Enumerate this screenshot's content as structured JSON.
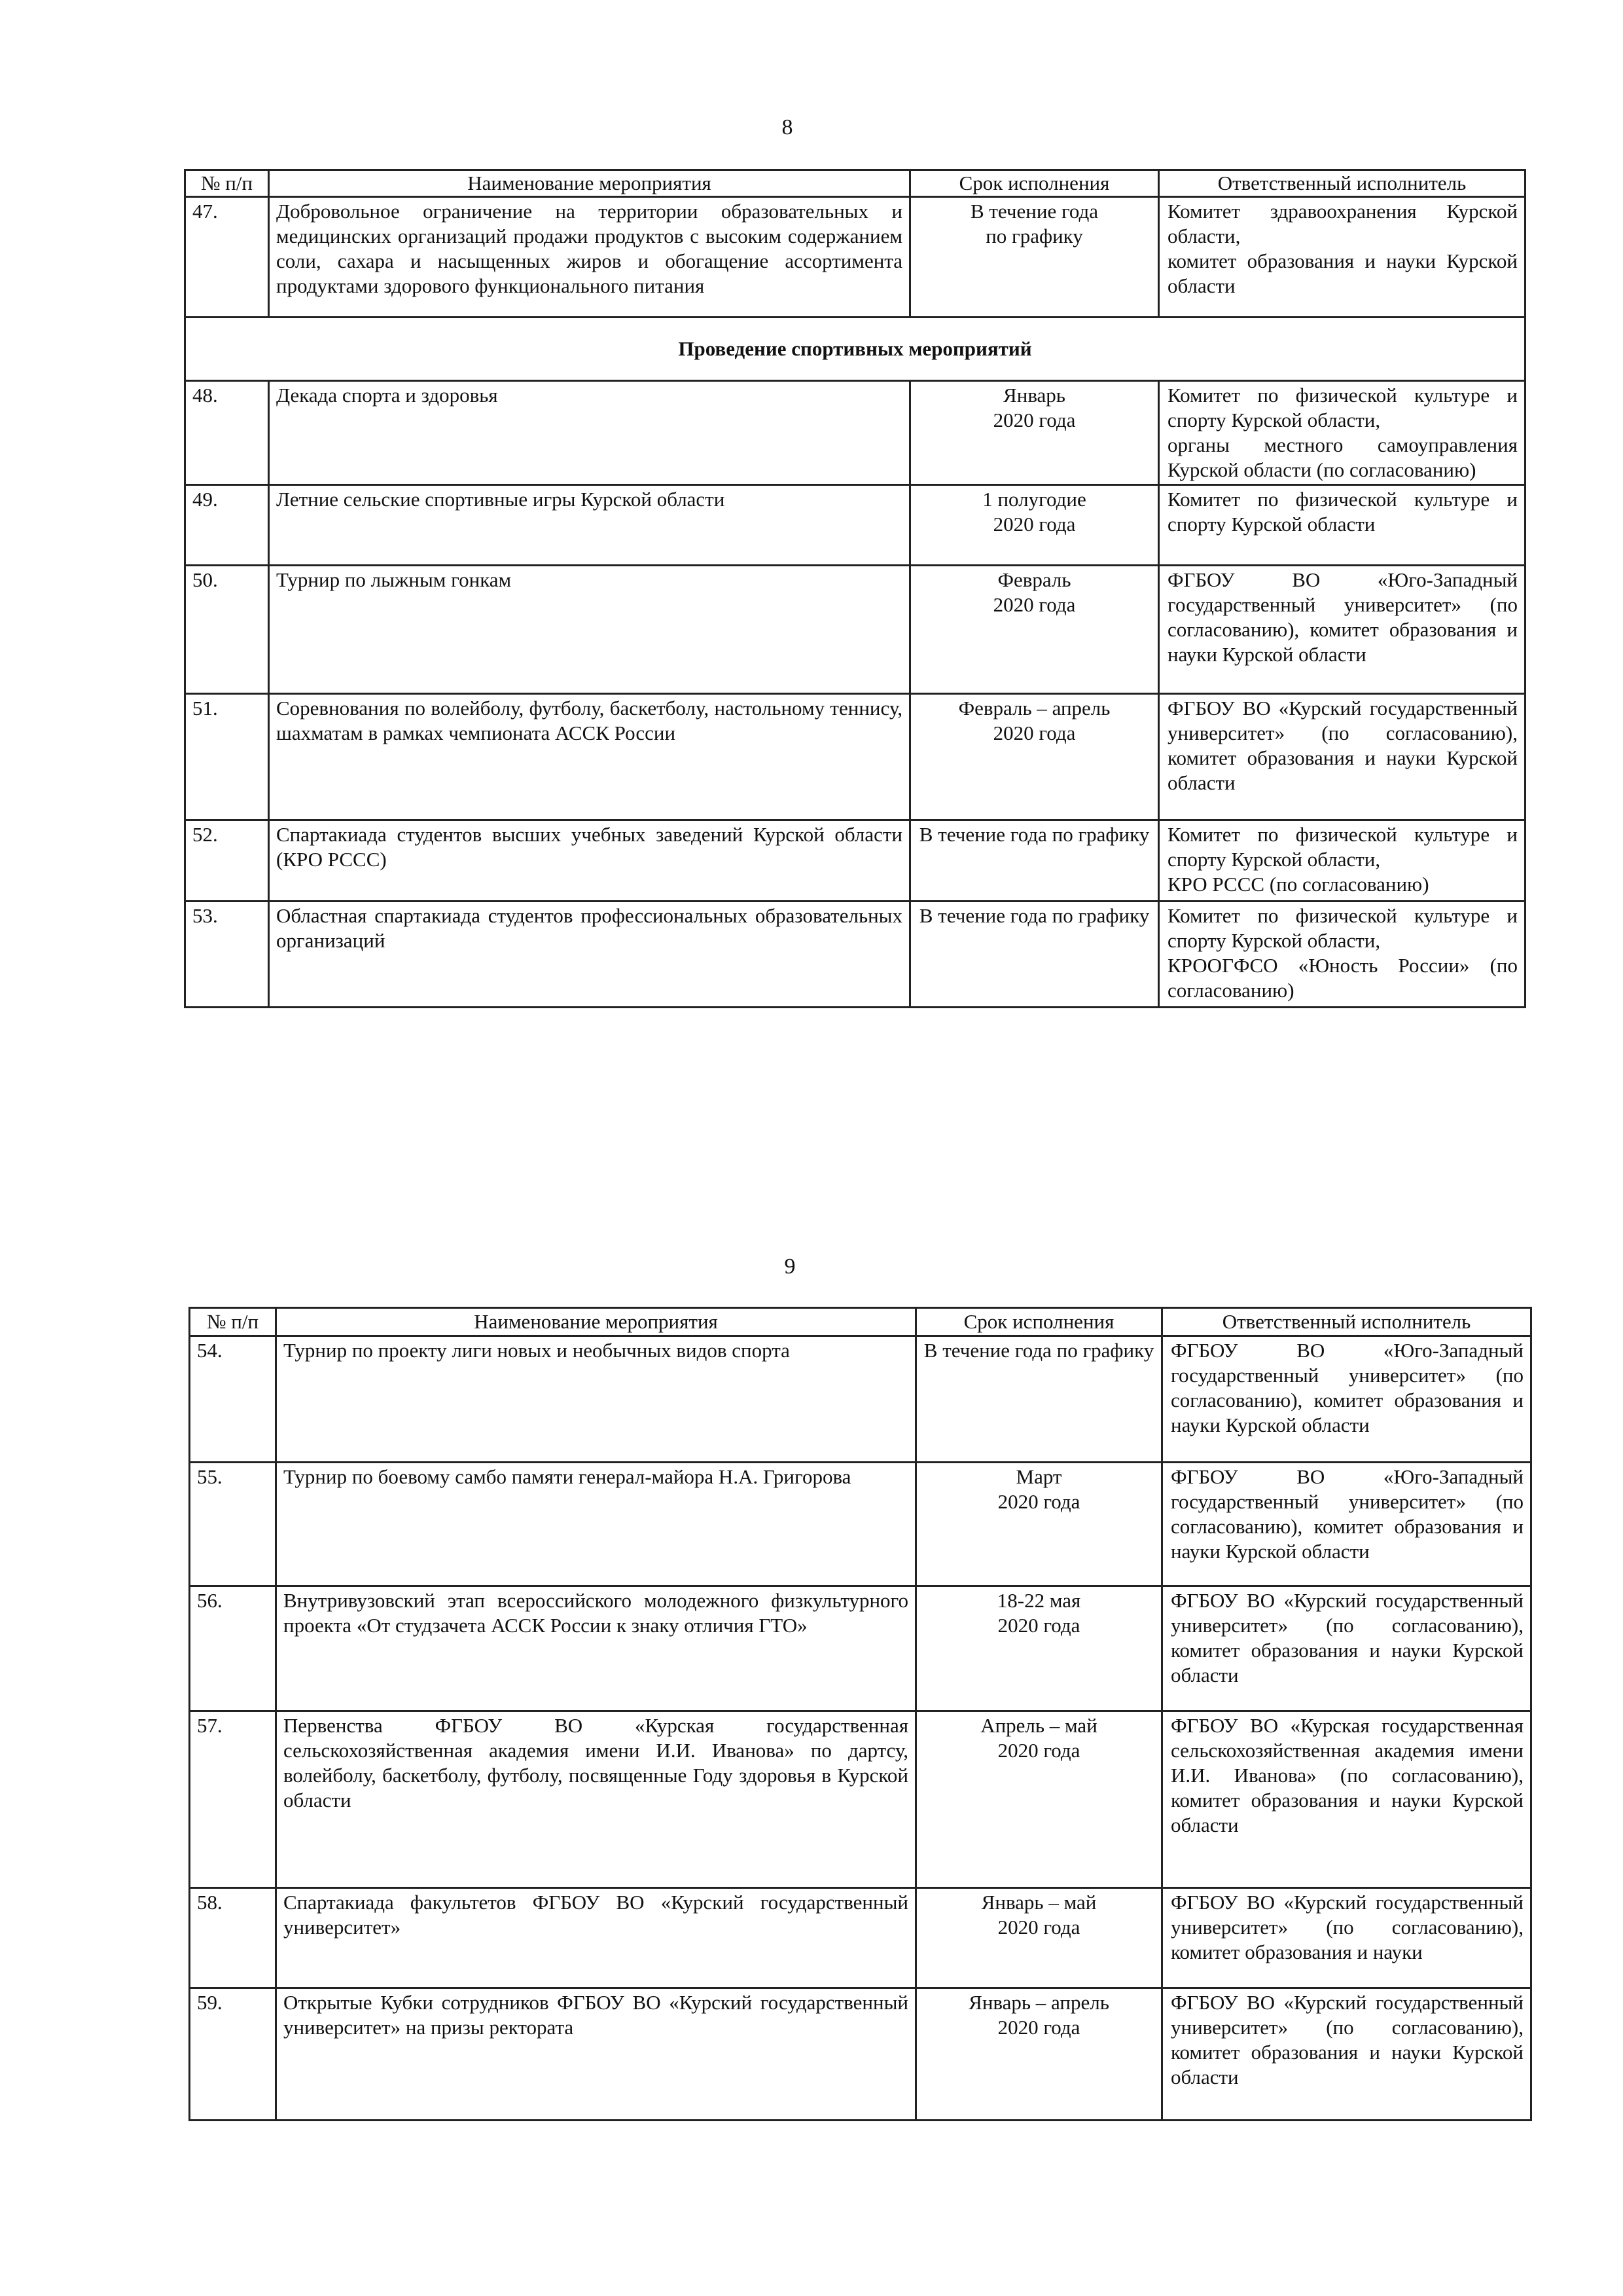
{
  "pages": [
    {
      "page_number": "8",
      "headers": [
        "№ п/п",
        "Наименование мероприятия",
        "Срок исполнения",
        "Ответственный исполнитель"
      ],
      "rows": [
        {
          "num": "47.",
          "name": "Добровольное ограничение на территории образовательных и медицинских организаций продажи продуктов с высоким содержанием соли, сахара и насыщенных жиров и обогащение ассортимента продуктами здорового функционального питания",
          "date": "В течение года\nпо графику",
          "resp": "Комитет здравоохранения Курской области,\nкомитет образования и науки Курской области"
        },
        {
          "section": "Проведение спортивных мероприятий"
        },
        {
          "num": "48.",
          "name": "Декада спорта и здоровья",
          "date": "Январь\n2020 года",
          "resp": "Комитет по физической культуре и спорту Курской области,\nорганы местного самоуправления Курской области (по согласованию)"
        },
        {
          "num": "49.",
          "name": "Летние сельские спортивные игры Курской области",
          "date": "1 полугодие\n2020 года",
          "resp": "Комитет по физической культуре и спорту Курской области"
        },
        {
          "num": "50.",
          "name": "Турнир по лыжным гонкам",
          "date": "Февраль\n2020 года",
          "resp": "ФГБОУ ВО «Юго-Западный государственный университет» (по согласованию), комитет образования и науки Курской области"
        },
        {
          "num": "51.",
          "name": "Соревнования по волейболу, футболу, баскетболу, настольному теннису, шахматам в рамках чемпионата АССК России",
          "date": "Февраль – апрель\n2020 года",
          "resp": "ФГБОУ ВО «Курский государственный университет» (по согласованию), комитет образования и науки Курской области"
        },
        {
          "num": "52.",
          "name": "Спартакиада студентов высших учебных заведений Курской области (КРО РССС)",
          "date": "В течение года по графику",
          "resp": "Комитет по физической культуре и спорту Курской области,\nКРО РССС (по согласованию)"
        },
        {
          "num": "53.",
          "name": "Областная спартакиада студентов профессиональных образовательных организаций",
          "date": "В течение года по графику",
          "resp": "Комитет по физической культуре и спорту Курской области,\nКРООГФСО «Юность России» (по согласованию)"
        }
      ]
    },
    {
      "page_number": "9",
      "headers": [
        "№ п/п",
        "Наименование мероприятия",
        "Срок исполнения",
        "Ответственный исполнитель"
      ],
      "rows": [
        {
          "num": "54.",
          "name": "Турнир по проекту лиги новых и необычных видов спорта",
          "date": "В течение года по графику",
          "resp": "ФГБОУ ВО «Юго-Западный государственный университет» (по согласованию), комитет образования и науки Курской области"
        },
        {
          "num": "55.",
          "name": "Турнир по боевому самбо памяти генерал-майора Н.А. Григорова",
          "date": "Март\n2020 года",
          "resp": "ФГБОУ ВО «Юго-Западный государственный университет» (по согласованию), комитет образования и науки Курской области"
        },
        {
          "num": "56.",
          "name": "Внутривузовский этап всероссийского молодежного физкультурного проекта «От студзачета АССК России к знаку отличия ГТО»",
          "date": "18-22 мая\n2020 года",
          "resp": "ФГБОУ ВО «Курский государственный университет» (по согласованию), комитет образования и науки Курской области"
        },
        {
          "num": "57.",
          "name": "Первенства ФГБОУ ВО «Курская государственная сельскохозяйственная академия имени И.И. Иванова» по дартсу, волейболу, баскетболу, футболу, посвященные Году здоровья в Курской области",
          "date": "Апрель – май\n2020 года",
          "resp": "ФГБОУ ВО «Курская государственная сельскохозяйственная академия имени И.И. Иванова» (по согласованию), комитет образования и науки Курской области"
        },
        {
          "num": "58.",
          "name": "Спартакиада факультетов ФГБОУ ВО «Курский государственный университет»",
          "date": "Январь – май\n2020 года",
          "resp": "ФГБОУ ВО «Курский государственный университет» (по согласованию), комитет образования и науки"
        },
        {
          "num": "59.",
          "name": "Открытые Кубки сотрудников ФГБОУ ВО «Курский государственный университет» на призы ректората",
          "date": "Январь – апрель\n2020 года",
          "resp": "ФГБОУ ВО «Курский государственный университет» (по согласованию), комитет образования и науки Курской области"
        }
      ]
    }
  ]
}
